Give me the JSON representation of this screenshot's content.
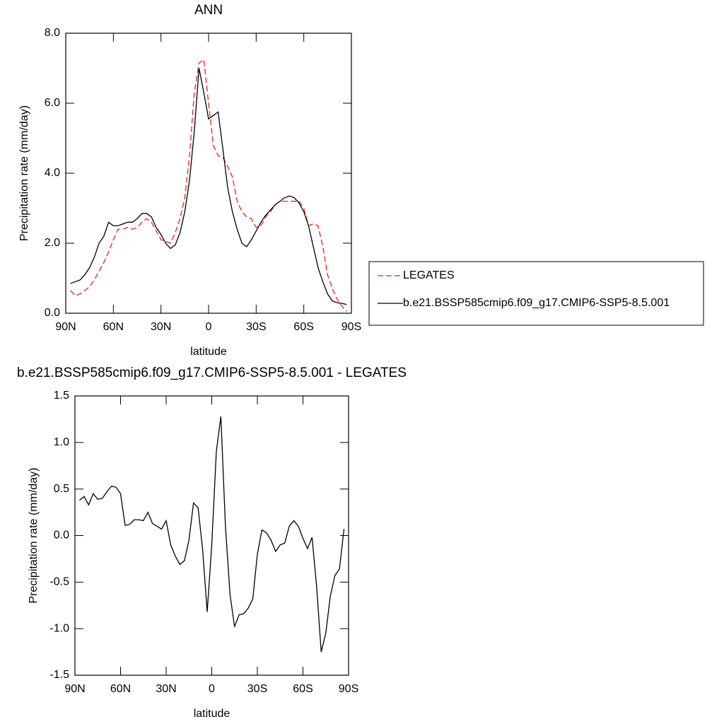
{
  "chart_data": [
    {
      "type": "line",
      "title": "ANN",
      "x_label": "latitude",
      "y_label": "Precipitation rate (mm/day)",
      "x": [
        87,
        84,
        81,
        78,
        75,
        72,
        69,
        66,
        63,
        60,
        57,
        54,
        51,
        48,
        45,
        42,
        39,
        36,
        33,
        30,
        27,
        24,
        21,
        18,
        15,
        12,
        9,
        6,
        3,
        0,
        -3,
        -6,
        -9,
        -12,
        -15,
        -18,
        -21,
        -24,
        -27,
        -30,
        -33,
        -36,
        -39,
        -42,
        -45,
        -48,
        -51,
        -54,
        -57,
        -60,
        -63,
        -66,
        -69,
        -72,
        -75,
        -78,
        -81,
        -84,
        -87
      ],
      "series": [
        {
          "name": "LEGATES",
          "color": "#e8201c",
          "dash": true,
          "values": [
            0.65,
            0.5,
            0.55,
            0.65,
            0.75,
            0.95,
            1.2,
            1.45,
            1.75,
            2.1,
            2.4,
            2.4,
            2.45,
            2.4,
            2.45,
            2.6,
            2.7,
            2.6,
            2.35,
            2.1,
            2.05,
            2.0,
            2.3,
            2.7,
            3.3,
            4.5,
            6.3,
            7.15,
            7.25,
            6.0,
            4.8,
            4.5,
            4.45,
            4.2,
            3.9,
            3.2,
            2.9,
            2.75,
            2.7,
            2.45,
            2.5,
            2.75,
            2.9,
            3.1,
            3.2,
            3.2,
            3.2,
            3.2,
            3.2,
            3.0,
            2.5,
            2.55,
            2.5,
            1.9,
            1.1,
            0.7,
            0.4,
            0.2,
            0.05
          ]
        },
        {
          "name": "b.e21.BSSP585cmip6.f09_g17.CMIP6-SSP5-8.5.001",
          "color": "#000000",
          "dash": false,
          "values": [
            0.85,
            0.9,
            0.95,
            1.1,
            1.3,
            1.6,
            2.0,
            2.2,
            2.6,
            2.5,
            2.5,
            2.55,
            2.6,
            2.6,
            2.7,
            2.85,
            2.85,
            2.75,
            2.45,
            2.25,
            2.0,
            1.85,
            1.95,
            2.3,
            2.9,
            3.8,
            5.2,
            7.0,
            6.3,
            5.55,
            5.65,
            5.75,
            4.7,
            3.6,
            2.9,
            2.4,
            2.0,
            1.9,
            2.1,
            2.35,
            2.6,
            2.8,
            2.95,
            3.1,
            3.2,
            3.3,
            3.35,
            3.3,
            3.15,
            2.9,
            2.5,
            1.9,
            1.3,
            0.9,
            0.55,
            0.35,
            0.3,
            0.28,
            0.25
          ]
        }
      ],
      "xlim": [
        90,
        -90
      ],
      "xticks": [
        {
          "value": 90,
          "label": "90N"
        },
        {
          "value": 60,
          "label": "60N"
        },
        {
          "value": 30,
          "label": "30N"
        },
        0,
        {
          "value": -30,
          "label": "30S"
        },
        {
          "value": -60,
          "label": "60S"
        },
        {
          "value": -90,
          "label": "90S"
        }
      ],
      "ylim": [
        0,
        8
      ],
      "yticks": [
        {
          "value": 0,
          "label": "0.0"
        },
        {
          "value": 2,
          "label": "2.0"
        },
        {
          "value": 4,
          "label": "4.0"
        },
        {
          "value": 6,
          "label": "6.0"
        },
        {
          "value": 8,
          "label": "8.0"
        }
      ],
      "legend": "right"
    },
    {
      "type": "line",
      "title": "b.e21.BSSP585cmip6.f09_g17.CMIP6-SSP5-8.5.001 - LEGATES",
      "x_label": "latitude",
      "y_label": "Precipitation rate (mm/day)",
      "x": [
        87,
        84,
        81,
        78,
        75,
        72,
        69,
        66,
        63,
        60,
        57,
        54,
        51,
        48,
        45,
        42,
        39,
        36,
        33,
        30,
        27,
        24,
        21,
        18,
        15,
        12,
        9,
        6,
        3,
        0,
        -3,
        -6,
        -9,
        -12,
        -15,
        -18,
        -21,
        -24,
        -27,
        -30,
        -33,
        -36,
        -39,
        -42,
        -45,
        -48,
        -51,
        -54,
        -57,
        -60,
        -63,
        -66,
        -69,
        -72,
        -75,
        -78,
        -81,
        -84,
        -87
      ],
      "series": [
        {
          "color": "#000000",
          "dash": false,
          "values": [
            0.38,
            0.42,
            0.33,
            0.45,
            0.39,
            0.4,
            0.47,
            0.53,
            0.52,
            0.45,
            0.11,
            0.12,
            0.17,
            0.17,
            0.16,
            0.25,
            0.13,
            0.1,
            0.07,
            0.16,
            -0.1,
            -0.22,
            -0.31,
            -0.27,
            -0.05,
            0.35,
            0.3,
            -0.15,
            -0.82,
            -0.1,
            0.9,
            1.28,
            0.1,
            -0.63,
            -0.98,
            -0.85,
            -0.84,
            -0.78,
            -0.68,
            -0.2,
            0.06,
            0.03,
            -0.05,
            -0.17,
            -0.1,
            -0.08,
            0.1,
            0.16,
            0.1,
            -0.03,
            -0.14,
            -0.02,
            -0.55,
            -1.25,
            -1.05,
            -0.65,
            -0.43,
            -0.36,
            0.07
          ]
        }
      ],
      "xlim": [
        90,
        -90
      ],
      "xticks": [
        {
          "value": 90,
          "label": "90N"
        },
        {
          "value": 60,
          "label": "60N"
        },
        {
          "value": 30,
          "label": "30N"
        },
        0,
        {
          "value": -30,
          "label": "30S"
        },
        {
          "value": -60,
          "label": "60S"
        },
        {
          "value": -90,
          "label": "90S"
        }
      ],
      "ylim": [
        -1.5,
        1.5
      ],
      "yticks": [
        -1.5,
        {
          "value": -1,
          "label": "-1.0"
        },
        -0.5,
        {
          "value": 0,
          "label": "0.0"
        },
        0.5,
        {
          "value": 1,
          "label": "1.0"
        },
        1.5
      ]
    }
  ]
}
